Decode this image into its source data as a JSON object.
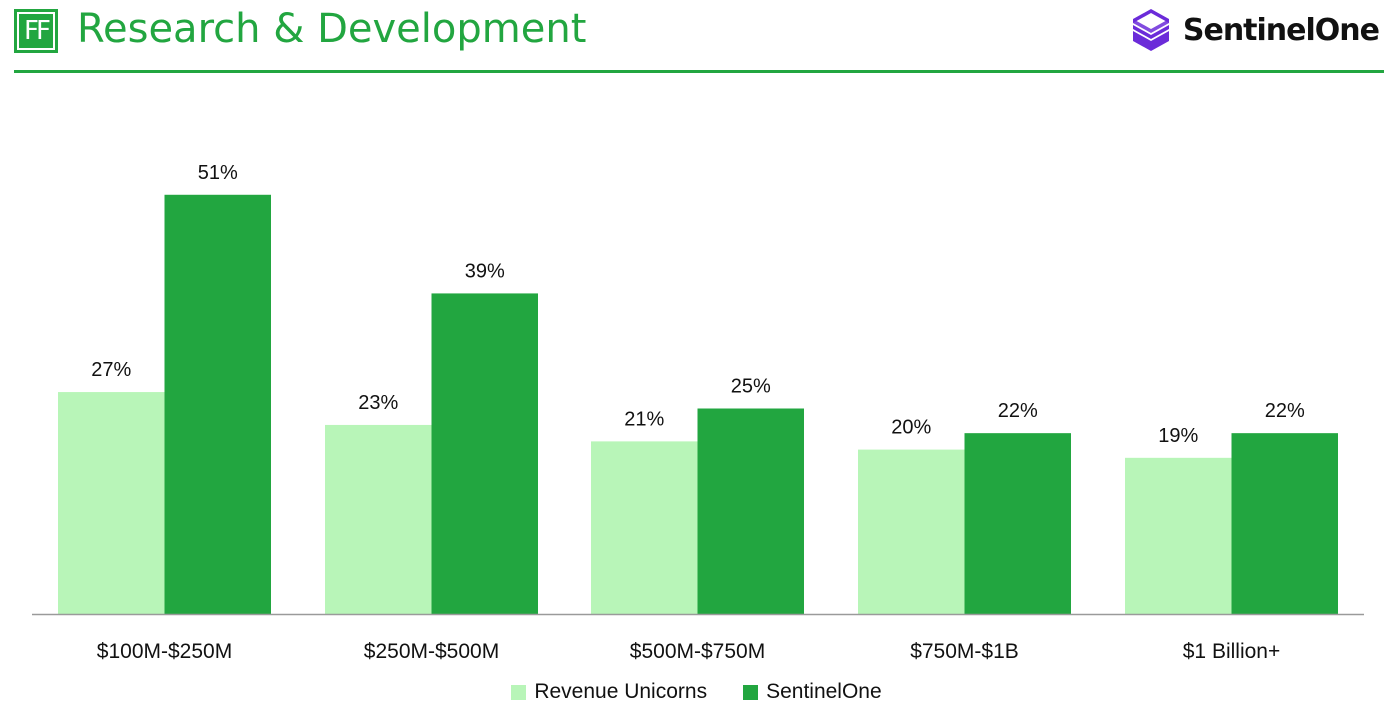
{
  "header": {
    "logo_text": "FF",
    "title": "Research & Development",
    "brand_name": "SentinelOne",
    "brand_icon": "sentinelone-logo-icon"
  },
  "colors": {
    "accent": "#22a640",
    "series_light": "#b8f5b8",
    "series_dark": "#22a640",
    "brand_purple": "#6b2bd9"
  },
  "chart_data": {
    "type": "bar",
    "title": "Research & Development",
    "xlabel": "",
    "ylabel": "",
    "ylim": [
      0,
      55
    ],
    "grid": false,
    "legend": "bottom-center",
    "categories": [
      "$100M-$250M",
      "$250M-$500M",
      "$500M-$750M",
      "$750M-$1B",
      "$1 Billion+"
    ],
    "series": [
      {
        "name": "Revenue Unicorns",
        "values": [
          27,
          23,
          21,
          20,
          19
        ],
        "labels": [
          "27%",
          "23%",
          "21%",
          "20%",
          "19%"
        ]
      },
      {
        "name": "SentinelOne",
        "values": [
          51,
          39,
          25,
          22,
          22
        ],
        "labels": [
          "51%",
          "39%",
          "25%",
          "22%",
          "22%"
        ]
      }
    ]
  }
}
